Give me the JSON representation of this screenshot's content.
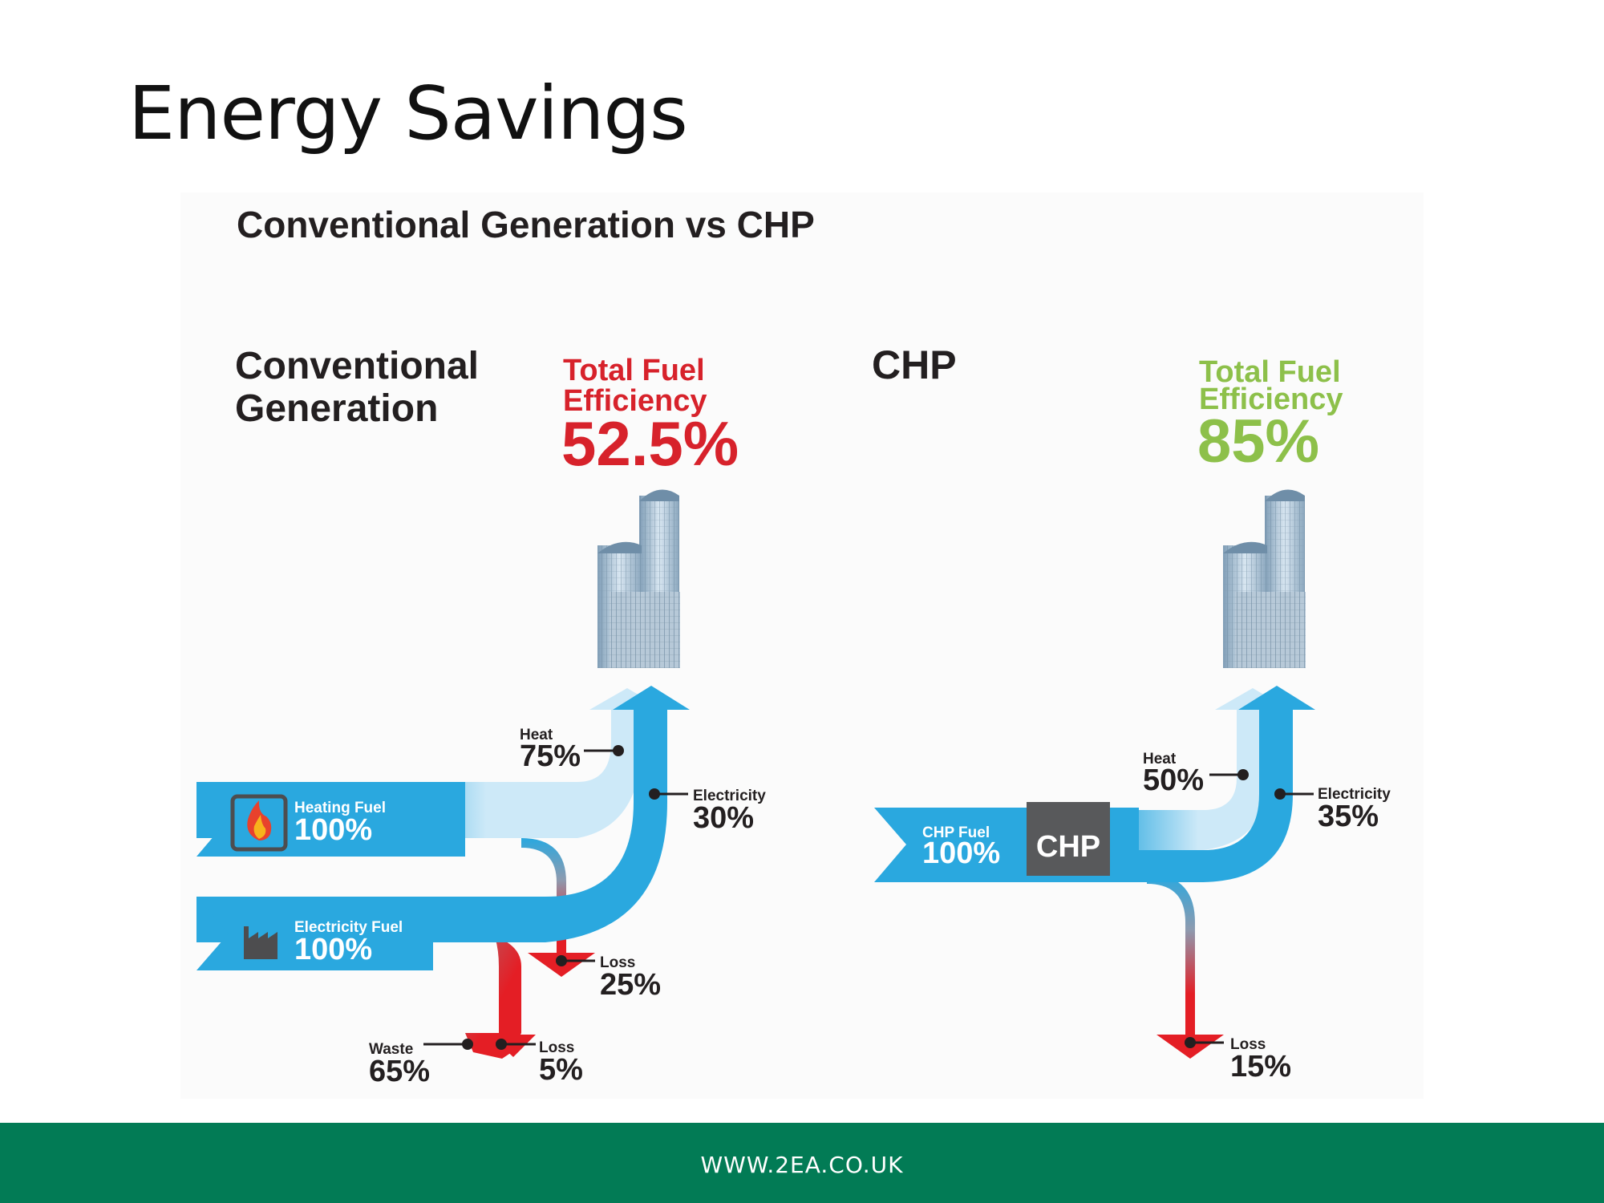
{
  "slide": {
    "title": "Energy Savings"
  },
  "diagram": {
    "heading": "Conventional Generation vs CHP",
    "conventional": {
      "label_line1": "Conventional",
      "label_line2": "Generation",
      "efficiency_line1": "Total Fuel",
      "efficiency_line2": "Efficiency",
      "efficiency_value": "52.5%",
      "heating_fuel_label": "Heating Fuel",
      "heating_fuel_value": "100%",
      "electricity_fuel_label": "Electricity Fuel",
      "electricity_fuel_value": "100%",
      "heat_label": "Heat",
      "heat_value": "75%",
      "electricity_label": "Electricity",
      "electricity_value": "30%",
      "loss1_label": "Loss",
      "loss1_value": "25%",
      "waste_label": "Waste",
      "waste_value": "65%",
      "loss2_label": "Loss",
      "loss2_value": "5%"
    },
    "chp": {
      "label": "CHP",
      "efficiency_line1": "Total Fuel",
      "efficiency_line2": "Efficiency",
      "efficiency_value": "85%",
      "fuel_label": "CHP Fuel",
      "fuel_value": "100%",
      "unit_label": "CHP",
      "heat_label": "Heat",
      "heat_value": "50%",
      "electricity_label": "Electricity",
      "electricity_value": "35%",
      "loss_label": "Loss",
      "loss_value": "15%"
    },
    "colors": {
      "flow_blue": "#2aa8df",
      "heat_light_blue": "#cde9f8",
      "loss_red": "#e41e25",
      "conventional_efficiency": "#d7222b",
      "chp_efficiency": "#8dc04a",
      "chp_box": "#58595b"
    }
  },
  "footer": {
    "website": "WWW.2EA.CO.UK"
  }
}
